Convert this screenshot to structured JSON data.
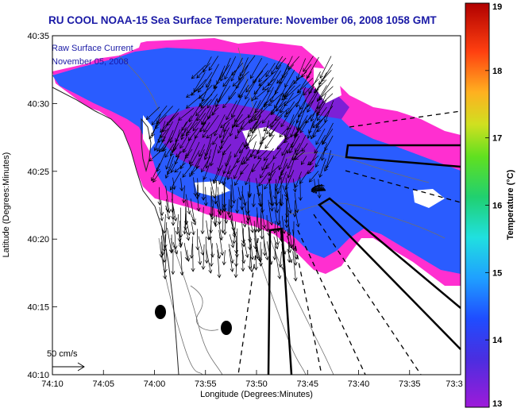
{
  "chart_data": {
    "type": "heatmap",
    "title": "RU COOL  NOAA-15  Sea Surface Temperature:  November 06, 2008 1058 GMT",
    "overlay_label_1": "Raw Surface Current",
    "overlay_label_2": "November 05, 2008",
    "xlabel": "Longitude (Degrees:Minutes)",
    "ylabel": "Latitude (Degrees:Minutes)",
    "colorbar_label": "Temperature (°C)",
    "x_ticks": [
      "74:10",
      "74:05",
      "74:00",
      "73:55",
      "73:50",
      "73:45",
      "73:40",
      "73:35",
      "73:3"
    ],
    "y_ticks": [
      "40:35",
      "40:30",
      "40:25",
      "40:20",
      "40:15",
      "40:10"
    ],
    "colorbar_ticks": [
      "19",
      "18",
      "17",
      "16",
      "15",
      "14",
      "13"
    ],
    "colorbar_range": [
      13,
      19
    ],
    "scale_label": "50 cm/s",
    "x_range_deg": [
      -74.1667,
      -73.5
    ],
    "y_range_deg": [
      40.1667,
      40.5833
    ]
  },
  "colors": {
    "title": "#1a1aa6",
    "land": "#ffffff",
    "sst_warm_pink": "#ff2fd0",
    "sst_mid_blue": "#2a5cff",
    "sst_cool_purple": "#7d1fd6"
  }
}
